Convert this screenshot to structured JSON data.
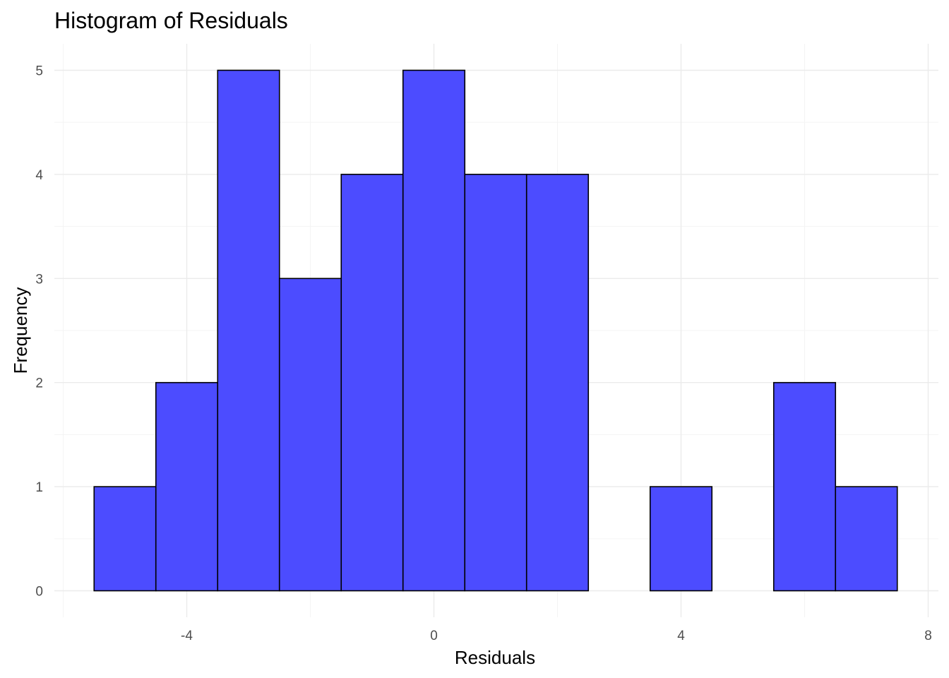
{
  "chart_data": {
    "type": "bar",
    "title": "Histogram of Residuals",
    "xlabel": "Residuals",
    "ylabel": "Frequency",
    "bin_width": 1,
    "bins": [
      {
        "x": -5,
        "count": 1
      },
      {
        "x": -4,
        "count": 2
      },
      {
        "x": -3,
        "count": 5
      },
      {
        "x": -2,
        "count": 3
      },
      {
        "x": -1,
        "count": 4
      },
      {
        "x": 0,
        "count": 5
      },
      {
        "x": 1,
        "count": 4
      },
      {
        "x": 2,
        "count": 4
      },
      {
        "x": 3,
        "count": 0
      },
      {
        "x": 4,
        "count": 1
      },
      {
        "x": 5,
        "count": 0
      },
      {
        "x": 6,
        "count": 2
      },
      {
        "x": 7,
        "count": 1
      }
    ],
    "xlim": [
      -6,
      8
    ],
    "ylim": [
      0,
      5.25
    ],
    "x_ticks": [
      -4,
      0,
      4,
      8
    ],
    "x_tick_labels": [
      "-4",
      "0",
      "4",
      "8"
    ],
    "y_ticks": [
      0,
      1,
      2,
      3,
      4,
      5
    ],
    "y_tick_labels": [
      "0",
      "1",
      "2",
      "3",
      "4",
      "5"
    ],
    "grid": true,
    "bar_fill": "#4c4cff",
    "bar_outline": "#000000",
    "legend": "none"
  }
}
